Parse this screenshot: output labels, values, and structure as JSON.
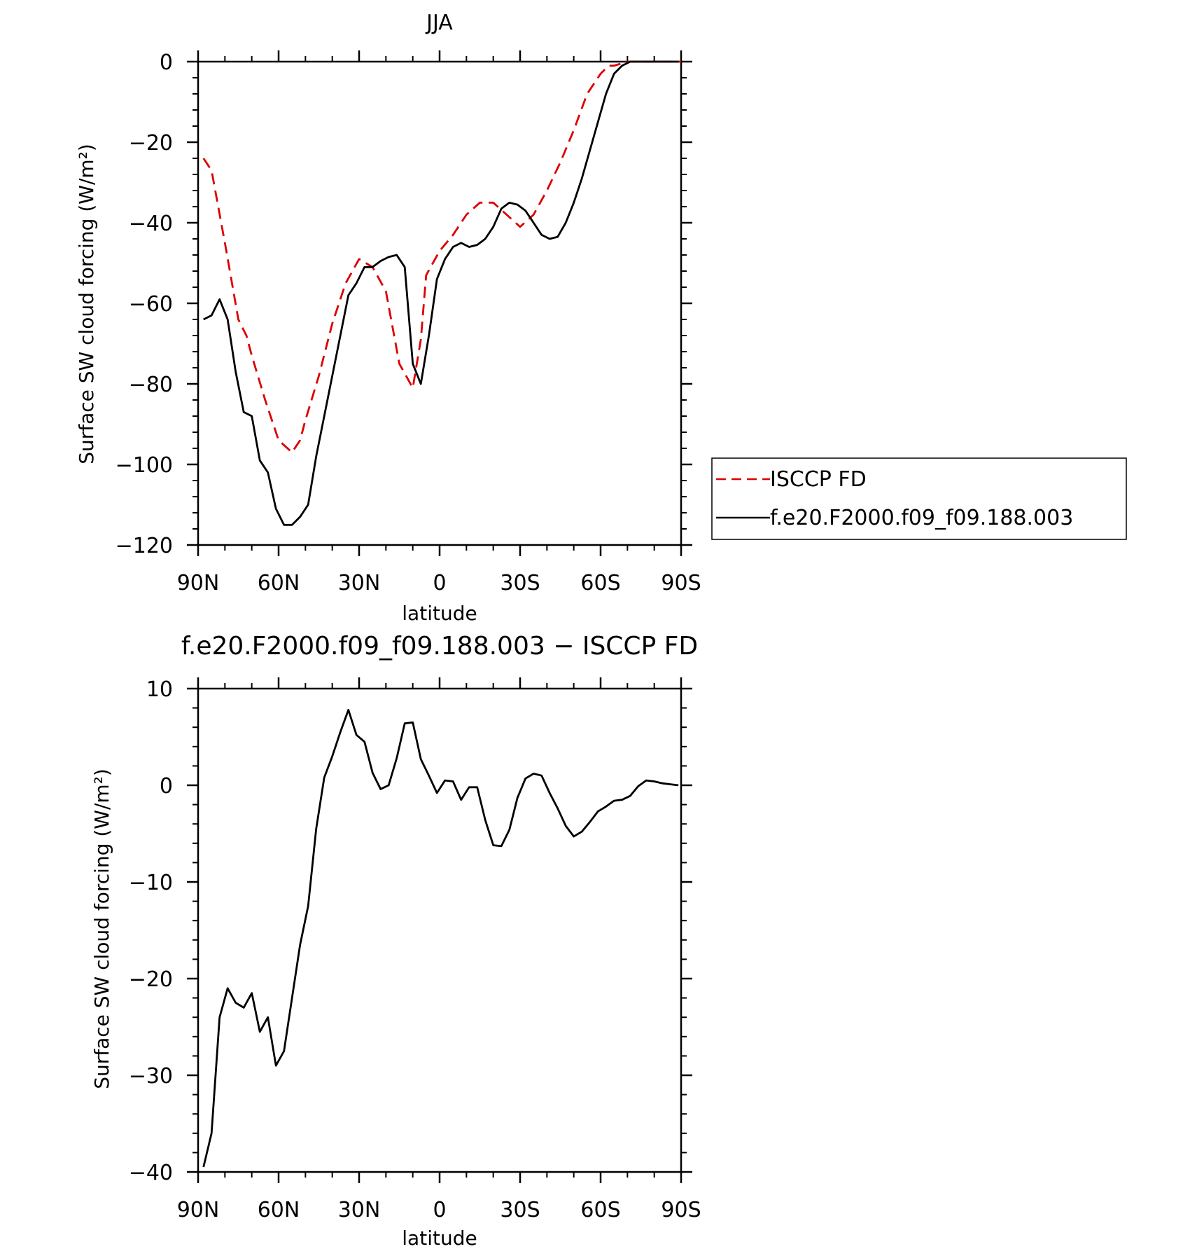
{
  "figure": {
    "top_title": "JJA",
    "bottom_title": "f.e20.F2000.f09_f09.188.003 − ISCCP FD"
  },
  "chart_data": [
    {
      "type": "line",
      "title": "JJA",
      "xlabel": "latitude",
      "ylabel": "Surface SW cloud forcing (W/m²)",
      "xlim": [
        90,
        -90
      ],
      "ylim": [
        -120,
        0
      ],
      "x_ticks": [
        90,
        60,
        30,
        0,
        -30,
        -60,
        -90
      ],
      "x_tick_labels": [
        "90N",
        "60N",
        "30N",
        "0",
        "30S",
        "60S",
        "90S"
      ],
      "y_ticks": [
        0,
        -20,
        -40,
        -60,
        -80,
        -100,
        -120
      ],
      "y_tick_labels": [
        "0",
        "−20",
        "−40",
        "−60",
        "−80",
        "−100",
        "−120"
      ],
      "legend_position": "right",
      "series": [
        {
          "name": "ISCCP FD",
          "color": "#dd0000",
          "style": "dashed",
          "x": [
            88,
            85,
            80,
            75,
            72,
            70,
            65,
            60,
            55,
            52,
            50,
            45,
            40,
            35,
            30,
            25,
            20,
            15,
            10,
            7,
            5,
            0,
            -5,
            -10,
            -15,
            -20,
            -25,
            -30,
            -35,
            -40,
            -45,
            -50,
            -55,
            -60,
            -63,
            -65,
            -70,
            -75,
            -80,
            -85,
            -90
          ],
          "y": [
            -24,
            -27,
            -45,
            -64,
            -68,
            -73,
            -84,
            -94,
            -97,
            -94,
            -89,
            -78,
            -65,
            -55,
            -49,
            -51,
            -57,
            -75,
            -81,
            -69,
            -53,
            -47,
            -43,
            -38,
            -35,
            -35,
            -38,
            -41,
            -38,
            -32,
            -25,
            -17,
            -8,
            -3,
            -1,
            -1,
            0,
            0,
            0,
            0,
            0
          ]
        },
        {
          "name": "f.e20.F2000.f09_f09.188.003",
          "color": "#000000",
          "style": "solid",
          "x": [
            88,
            85,
            82,
            79,
            76,
            73,
            70,
            67,
            64,
            61,
            58,
            55,
            52,
            49,
            46,
            43,
            40,
            37,
            34,
            31,
            28,
            25,
            22,
            19,
            16,
            13,
            10,
            7,
            4,
            1,
            -2,
            -5,
            -8,
            -11,
            -14,
            -17,
            -20,
            -23,
            -26,
            -29,
            -32,
            -35,
            -38,
            -41,
            -44,
            -47,
            -50,
            -53,
            -56,
            -59,
            -62,
            -65,
            -68,
            -71,
            -74,
            -77,
            -80,
            -83,
            -86,
            -89
          ],
          "y": [
            -64,
            -63,
            -59,
            -64,
            -77,
            -87,
            -88,
            -99,
            -102,
            -111,
            -115,
            -115,
            -113,
            -110,
            -98,
            -88,
            -78,
            -68,
            -58,
            -55,
            -51,
            -51,
            -49.5,
            -48.5,
            -48,
            -51,
            -75,
            -80,
            -68,
            -54,
            -49,
            -46,
            -45,
            -46,
            -45.5,
            -44,
            -41,
            -36.5,
            -35,
            -35.5,
            -37,
            -40,
            -43,
            -44,
            -43.5,
            -40,
            -35,
            -29,
            -22,
            -15,
            -8,
            -3,
            -1,
            0,
            0,
            0,
            0,
            0,
            0,
            0
          ]
        }
      ]
    },
    {
      "type": "line",
      "title": "f.e20.F2000.f09_f09.188.003 − ISCCP FD",
      "xlabel": "latitude",
      "ylabel": "Surface SW cloud forcing (W/m²)",
      "xlim": [
        90,
        -90
      ],
      "ylim": [
        -40,
        10
      ],
      "x_ticks": [
        90,
        60,
        30,
        0,
        -30,
        -60,
        -90
      ],
      "x_tick_labels": [
        "90N",
        "60N",
        "30N",
        "0",
        "30S",
        "60S",
        "90S"
      ],
      "y_ticks": [
        10,
        0,
        -10,
        -20,
        -30,
        -40
      ],
      "y_tick_labels": [
        "10",
        "0",
        "−10",
        "−20",
        "−30",
        "−40"
      ],
      "series": [
        {
          "color": "#000000",
          "style": "solid",
          "x": [
            88,
            85,
            82,
            79,
            76,
            73,
            70,
            67,
            64,
            61,
            58,
            55,
            52,
            49,
            46,
            43,
            40,
            37,
            34,
            31,
            28,
            25,
            22,
            19,
            16,
            13,
            10,
            7,
            4,
            1,
            -2,
            -5,
            -8,
            -11,
            -14,
            -17,
            -20,
            -23,
            -26,
            -29,
            -32,
            -35,
            -38,
            -41,
            -44,
            -47,
            -50,
            -53,
            -56,
            -59,
            -62,
            -65,
            -68,
            -71,
            -74,
            -77,
            -80,
            -83,
            -86,
            -89
          ],
          "y": [
            -39.5,
            -36,
            -24,
            -21,
            -22.5,
            -23,
            -21.5,
            -25.5,
            -24,
            -29,
            -27.5,
            -22,
            -16.5,
            -12.5,
            -4.5,
            0.8,
            3,
            5.5,
            7.8,
            5.2,
            4.5,
            1.3,
            -0.4,
            0,
            2.8,
            6.4,
            6.5,
            2.7,
            1,
            -0.8,
            0.5,
            0.4,
            -1.5,
            -0.2,
            -0.2,
            -3.6,
            -6.2,
            -6.3,
            -4.6,
            -1.3,
            0.7,
            1.2,
            1,
            -0.8,
            -2.4,
            -4.2,
            -5.3,
            -4.8,
            -3.8,
            -2.7,
            -2.2,
            -1.6,
            -1.5,
            -1.1,
            -0.1,
            0.5,
            0.4,
            0.2,
            0.1,
            0
          ]
        }
      ]
    }
  ]
}
